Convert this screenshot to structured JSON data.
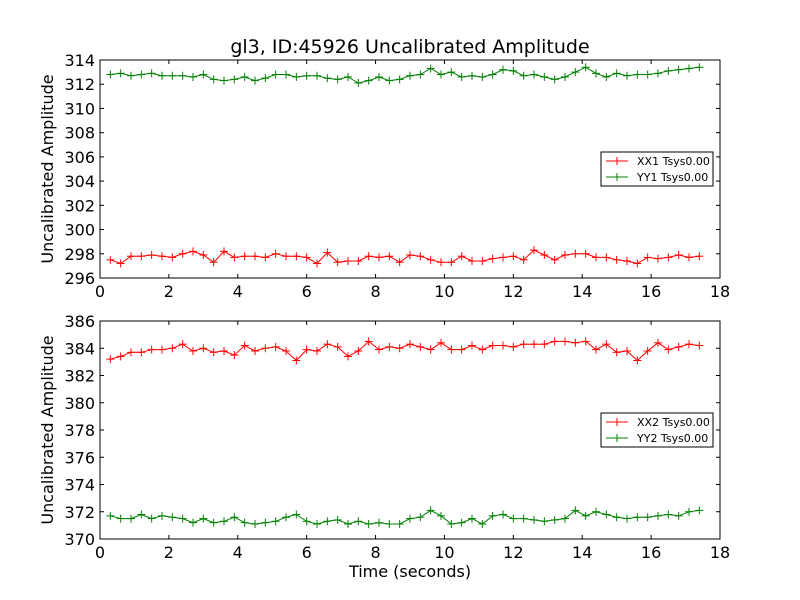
{
  "chart_data": {
    "title": "gl3, ID:45926 Uncalibrated Amplitude",
    "xlabel": "Time (seconds)",
    "colors": {
      "XX": "#ff0000",
      "YY": "#008000"
    },
    "x": [
      0.3,
      0.6,
      0.9,
      1.2,
      1.5,
      1.8,
      2.1,
      2.4,
      2.7,
      3.0,
      3.3,
      3.6,
      3.9,
      4.2,
      4.5,
      4.8,
      5.1,
      5.4,
      5.7,
      6.0,
      6.3,
      6.6,
      6.9,
      7.2,
      7.5,
      7.8,
      8.1,
      8.4,
      8.7,
      9.0,
      9.3,
      9.6,
      9.9,
      10.2,
      10.5,
      10.8,
      11.1,
      11.4,
      11.7,
      12.0,
      12.3,
      12.6,
      12.9,
      13.2,
      13.5,
      13.8,
      14.1,
      14.4,
      14.7,
      15.0,
      15.3,
      15.6,
      15.9,
      16.2,
      16.5,
      16.8,
      17.1,
      17.4
    ],
    "panels": [
      {
        "type": "line",
        "ylabel": "Uncalibrated Amplitude",
        "xlim": [
          0,
          18
        ],
        "ylim": [
          296,
          314
        ],
        "xticks": [
          0,
          2,
          4,
          6,
          8,
          10,
          12,
          14,
          16,
          18
        ],
        "yticks": [
          296,
          298,
          300,
          302,
          304,
          306,
          308,
          310,
          312,
          314
        ],
        "legend_position": "center-right",
        "series": [
          {
            "name": "XX1 Tsys0.00",
            "color": "#ff0000",
            "values": [
              297.5,
              297.2,
              297.8,
              297.8,
              297.9,
              297.8,
              297.7,
              298.0,
              298.2,
              297.9,
              297.3,
              298.2,
              297.7,
              297.8,
              297.8,
              297.7,
              298.0,
              297.8,
              297.8,
              297.7,
              297.2,
              298.1,
              297.3,
              297.4,
              297.4,
              297.8,
              297.7,
              297.8,
              297.3,
              297.9,
              297.8,
              297.5,
              297.3,
              297.3,
              297.8,
              297.4,
              297.4,
              297.6,
              297.7,
              297.8,
              297.5,
              298.3,
              297.9,
              297.5,
              297.9,
              298.0,
              298.0,
              297.7,
              297.7,
              297.5,
              297.4,
              297.2,
              297.7,
              297.6,
              297.7,
              297.9,
              297.7,
              297.8
            ]
          },
          {
            "name": "YY1 Tsys0.00",
            "color": "#008000",
            "values": [
              312.8,
              312.9,
              312.7,
              312.8,
              312.9,
              312.7,
              312.7,
              312.7,
              312.6,
              312.8,
              312.4,
              312.3,
              312.4,
              312.6,
              312.3,
              312.5,
              312.8,
              312.8,
              312.6,
              312.7,
              312.7,
              312.5,
              312.4,
              312.6,
              312.1,
              312.3,
              312.6,
              312.3,
              312.4,
              312.7,
              312.8,
              313.3,
              312.8,
              313.0,
              312.6,
              312.7,
              312.6,
              312.8,
              313.2,
              313.1,
              312.7,
              312.8,
              312.6,
              312.4,
              312.6,
              313.0,
              313.4,
              312.9,
              312.6,
              312.9,
              312.7,
              312.8,
              312.8,
              312.9,
              313.1,
              313.2,
              313.3,
              313.4
            ]
          }
        ]
      },
      {
        "type": "line",
        "ylabel": "Uncalibrated Amplitude",
        "xlabel": "Time (seconds)",
        "xlim": [
          0,
          18
        ],
        "ylim": [
          370,
          386
        ],
        "xticks": [
          0,
          2,
          4,
          6,
          8,
          10,
          12,
          14,
          16,
          18
        ],
        "yticks": [
          370,
          372,
          374,
          376,
          378,
          380,
          382,
          384,
          386
        ],
        "legend_position": "center-right",
        "series": [
          {
            "name": "XX2 Tsys0.00",
            "color": "#ff0000",
            "values": [
              383.2,
              383.4,
              383.7,
              383.7,
              383.9,
              383.9,
              384.0,
              384.3,
              383.8,
              384.0,
              383.7,
              383.8,
              383.5,
              384.2,
              383.8,
              384.0,
              384.1,
              383.8,
              383.1,
              383.9,
              383.8,
              384.3,
              384.1,
              383.4,
              383.8,
              384.5,
              383.9,
              384.1,
              384.0,
              384.3,
              384.1,
              383.9,
              384.4,
              383.9,
              383.9,
              384.2,
              383.9,
              384.2,
              384.2,
              384.1,
              384.3,
              384.3,
              384.3,
              384.5,
              384.5,
              384.4,
              384.5,
              383.9,
              384.3,
              383.7,
              383.8,
              383.1,
              383.8,
              384.4,
              383.9,
              384.1,
              384.3,
              384.2
            ]
          },
          {
            "name": "YY2 Tsys0.00",
            "color": "#008000",
            "values": [
              371.7,
              371.5,
              371.5,
              371.8,
              371.5,
              371.7,
              371.6,
              371.5,
              371.2,
              371.5,
              371.2,
              371.3,
              371.6,
              371.2,
              371.1,
              371.2,
              371.3,
              371.6,
              371.8,
              371.3,
              371.1,
              371.3,
              371.4,
              371.1,
              371.3,
              371.1,
              371.2,
              371.1,
              371.1,
              371.5,
              371.6,
              372.1,
              371.7,
              371.1,
              371.2,
              371.5,
              371.1,
              371.7,
              371.8,
              371.5,
              371.5,
              371.4,
              371.3,
              371.4,
              371.5,
              372.1,
              371.7,
              372.0,
              371.8,
              371.6,
              371.5,
              371.6,
              371.6,
              371.7,
              371.8,
              371.7,
              372.0,
              372.1
            ]
          }
        ]
      }
    ]
  }
}
